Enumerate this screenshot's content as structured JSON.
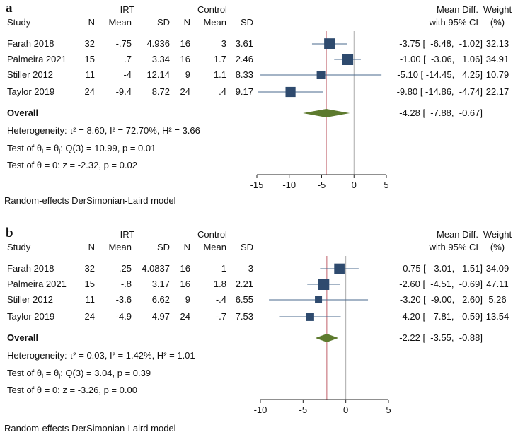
{
  "columns": {
    "study": "Study",
    "irt": "IRT",
    "control": "Control",
    "n": "N",
    "mean": "Mean",
    "sd": "SD",
    "effect_line1": "Mean Diff.",
    "effect_line2": "with 95% CI",
    "weight_line1": "Weight",
    "weight_line2": "(%)"
  },
  "overall_label": "Overall",
  "model_note": "Random-effects DerSimonian-Laird model",
  "colors": {
    "marker": "#2e4a6e",
    "ci_line": "#4a6a8e",
    "overall": "#5d7a2e",
    "overall_ref": "#c0606b",
    "null_line": "#aaaaaa"
  },
  "chart_data": [
    {
      "type": "forest",
      "panel_label": "a",
      "title": "",
      "xlabel": "",
      "xlim": [
        -15,
        5
      ],
      "xticks": [
        "-15",
        "-10",
        "-5",
        "0",
        "5"
      ],
      "xtick_values": [
        -15,
        -10,
        -5,
        0,
        5
      ],
      "studies": [
        {
          "study": "Farah 2018",
          "irt_n": "32",
          "irt_mean": "-.75",
          "irt_sd": "4.936",
          "ctrl_n": "16",
          "ctrl_mean": "3",
          "ctrl_sd": "3.61",
          "md": -3.75,
          "lo": -6.48,
          "hi": -1.02,
          "ci_text": "-3.75 [  -6.48,  -1.02]",
          "weight": 32.13,
          "weight_text": "32.13"
        },
        {
          "study": "Palmeira 2021",
          "irt_n": "15",
          "irt_mean": ".7",
          "irt_sd": "3.34",
          "ctrl_n": "16",
          "ctrl_mean": "1.7",
          "ctrl_sd": "2.46",
          "md": -1.0,
          "lo": -3.06,
          "hi": 1.06,
          "ci_text": "-1.00 [  -3.06,   1.06]",
          "weight": 34.91,
          "weight_text": "34.91"
        },
        {
          "study": "Stiller 2012",
          "irt_n": "11",
          "irt_mean": "-4",
          "irt_sd": "12.14",
          "ctrl_n": "9",
          "ctrl_mean": "1.1",
          "ctrl_sd": "8.33",
          "md": -5.1,
          "lo": -14.45,
          "hi": 4.25,
          "ci_text": "-5.10 [ -14.45,   4.25]",
          "weight": 10.79,
          "weight_text": "10.79"
        },
        {
          "study": "Taylor 2019",
          "irt_n": "24",
          "irt_mean": "-9.4",
          "irt_sd": "8.72",
          "ctrl_n": "24",
          "ctrl_mean": ".4",
          "ctrl_sd": "9.17",
          "md": -9.8,
          "lo": -14.86,
          "hi": -4.74,
          "ci_text": "-9.80 [ -14.86,  -4.74]",
          "weight": 22.17,
          "weight_text": "22.17"
        }
      ],
      "overall": {
        "md": -4.28,
        "lo": -7.88,
        "hi": -0.67,
        "ci_text": "-4.28 [  -7.88,  -0.67]"
      },
      "heterogeneity": {
        "prefix": "Heterogeneity: τ² = 8.60, I² = 72.70%, H² = 3.66"
      },
      "test_homog": {
        "pre": "Test of θ",
        "mid": " = θ",
        "post": ": Q(3) = 10.99, p = 0.01",
        "sub_i": "i",
        "sub_j": "j"
      },
      "test_zero": "Test of θ = 0: z = -2.32, p = 0.02"
    },
    {
      "type": "forest",
      "panel_label": "b",
      "title": "",
      "xlabel": "",
      "xlim": [
        -10,
        5
      ],
      "xticks": [
        "-10",
        "-5",
        "0",
        "5"
      ],
      "xtick_values": [
        -10,
        -5,
        0,
        5
      ],
      "studies": [
        {
          "study": "Farah 2018",
          "irt_n": "32",
          "irt_mean": ".25",
          "irt_sd": "4.0837",
          "ctrl_n": "16",
          "ctrl_mean": "1",
          "ctrl_sd": "3",
          "md": -0.75,
          "lo": -3.01,
          "hi": 1.51,
          "ci_text": "-0.75 [  -3.01,   1.51]",
          "weight": 34.09,
          "weight_text": "34.09"
        },
        {
          "study": "Palmeira 2021",
          "irt_n": "15",
          "irt_mean": "-.8",
          "irt_sd": "3.17",
          "ctrl_n": "16",
          "ctrl_mean": "1.8",
          "ctrl_sd": "2.21",
          "md": -2.6,
          "lo": -4.51,
          "hi": -0.69,
          "ci_text": "-2.60 [  -4.51,  -0.69]",
          "weight": 47.11,
          "weight_text": "47.11"
        },
        {
          "study": "Stiller 2012",
          "irt_n": "11",
          "irt_mean": "-3.6",
          "irt_sd": "6.62",
          "ctrl_n": "9",
          "ctrl_mean": "-.4",
          "ctrl_sd": "6.55",
          "md": -3.2,
          "lo": -9.0,
          "hi": 2.6,
          "ci_text": "-3.20 [  -9.00,   2.60]",
          "weight": 5.26,
          "weight_text": "5.26"
        },
        {
          "study": "Taylor 2019",
          "irt_n": "24",
          "irt_mean": "-4.9",
          "irt_sd": "4.97",
          "ctrl_n": "24",
          "ctrl_mean": "-.7",
          "ctrl_sd": "7.53",
          "md": -4.2,
          "lo": -7.81,
          "hi": -0.59,
          "ci_text": "-4.20 [  -7.81,  -0.59]",
          "weight": 13.54,
          "weight_text": "13.54"
        }
      ],
      "overall": {
        "md": -2.22,
        "lo": -3.55,
        "hi": -0.88,
        "ci_text": "-2.22 [  -3.55,  -0.88]"
      },
      "heterogeneity": {
        "prefix": "Heterogeneity: τ² = 0.03, I² = 1.42%, H² = 1.01"
      },
      "test_homog": {
        "pre": "Test of θ",
        "mid": " = θ",
        "post": ": Q(3) = 3.04, p = 0.39",
        "sub_i": "i",
        "sub_j": "j"
      },
      "test_zero": "Test of θ = 0: z = -3.26, p = 0.00"
    }
  ]
}
